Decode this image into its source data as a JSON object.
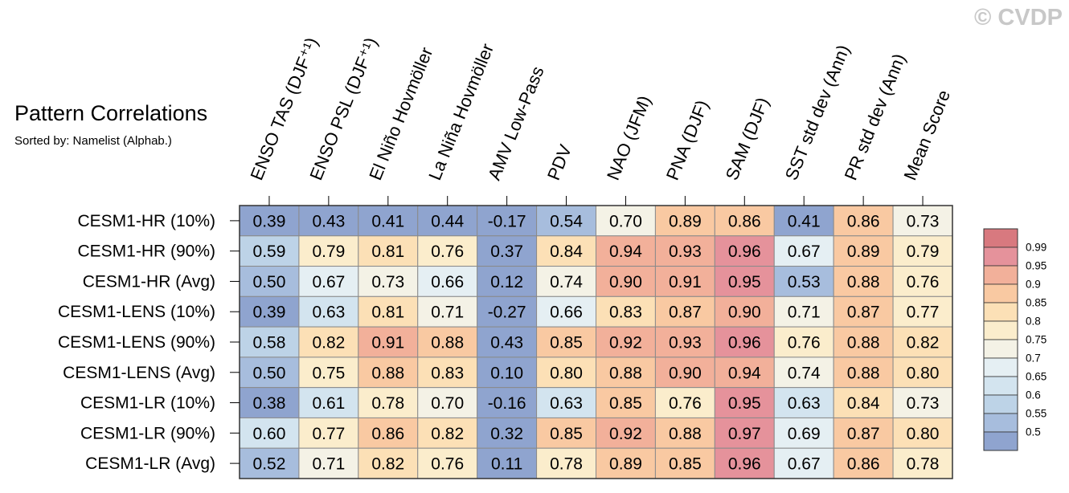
{
  "watermark": "© CVDP",
  "chart_data": {
    "type": "heatmap",
    "title": "Pattern Correlations",
    "subtitle": "Sorted by: Namelist (Alphab.)",
    "columns": [
      "ENSO TAS (DJF⁺¹)",
      "ENSO PSL (DJF⁺¹)",
      "El Niño Hovmöller",
      "La Niña Hovmöller",
      "AMV Low-Pass",
      "PDV",
      "NAO (JFM)",
      "PNA (DJF)",
      "SAM (DJF)",
      "SST std dev (Ann)",
      "PR std dev (Ann)",
      "Mean Score"
    ],
    "rows": [
      "CESM1-HR (10%)",
      "CESM1-HR (90%)",
      "CESM1-HR (Avg)",
      "CESM1-LENS (10%)",
      "CESM1-LENS (90%)",
      "CESM1-LENS (Avg)",
      "CESM1-LR (10%)",
      "CESM1-LR (90%)",
      "CESM1-LR (Avg)"
    ],
    "values": [
      [
        "0.39",
        "0.43",
        "0.41",
        "0.44",
        "-0.17",
        "0.54",
        "0.70",
        "0.89",
        "0.86",
        "0.41",
        "0.86",
        "0.73"
      ],
      [
        "0.59",
        "0.79",
        "0.81",
        "0.76",
        "0.37",
        "0.84",
        "0.94",
        "0.93",
        "0.96",
        "0.67",
        "0.89",
        "0.79"
      ],
      [
        "0.50",
        "0.67",
        "0.73",
        "0.66",
        "0.12",
        "0.74",
        "0.90",
        "0.91",
        "0.95",
        "0.53",
        "0.88",
        "0.76"
      ],
      [
        "0.39",
        "0.63",
        "0.81",
        "0.71",
        "-0.27",
        "0.66",
        "0.83",
        "0.87",
        "0.90",
        "0.71",
        "0.87",
        "0.77"
      ],
      [
        "0.58",
        "0.82",
        "0.91",
        "0.88",
        "0.43",
        "0.85",
        "0.92",
        "0.93",
        "0.96",
        "0.76",
        "0.88",
        "0.82"
      ],
      [
        "0.50",
        "0.75",
        "0.88",
        "0.83",
        "0.10",
        "0.80",
        "0.88",
        "0.90",
        "0.94",
        "0.74",
        "0.88",
        "0.80"
      ],
      [
        "0.38",
        "0.61",
        "0.78",
        "0.70",
        "-0.16",
        "0.63",
        "0.85",
        "0.76",
        "0.95",
        "0.63",
        "0.84",
        "0.73"
      ],
      [
        "0.60",
        "0.77",
        "0.86",
        "0.82",
        "0.32",
        "0.85",
        "0.92",
        "0.88",
        "0.97",
        "0.69",
        "0.87",
        "0.80"
      ],
      [
        "0.52",
        "0.71",
        "0.82",
        "0.76",
        "0.11",
        "0.78",
        "0.89",
        "0.85",
        "0.96",
        "0.67",
        "0.86",
        "0.78"
      ]
    ],
    "colorbar": {
      "levels": [
        0.5,
        0.55,
        0.6,
        0.65,
        0.7,
        0.75,
        0.8,
        0.85,
        0.9,
        0.95,
        0.99
      ],
      "labels": [
        "0.5",
        "0.55",
        "0.6",
        "0.65",
        "0.7",
        "0.75",
        "0.8",
        "0.85",
        "0.9",
        "0.95",
        "0.99"
      ],
      "colors": [
        "#8fa4cf",
        "#a7bddd",
        "#bdd3e7",
        "#d3e4ef",
        "#e5eff3",
        "#f4f2e6",
        "#fbedcc",
        "#fce0b6",
        "#f9c9a2",
        "#f2b09a",
        "#e5929b",
        "#d8797f"
      ]
    },
    "grid_color": "#8a8a8a"
  }
}
